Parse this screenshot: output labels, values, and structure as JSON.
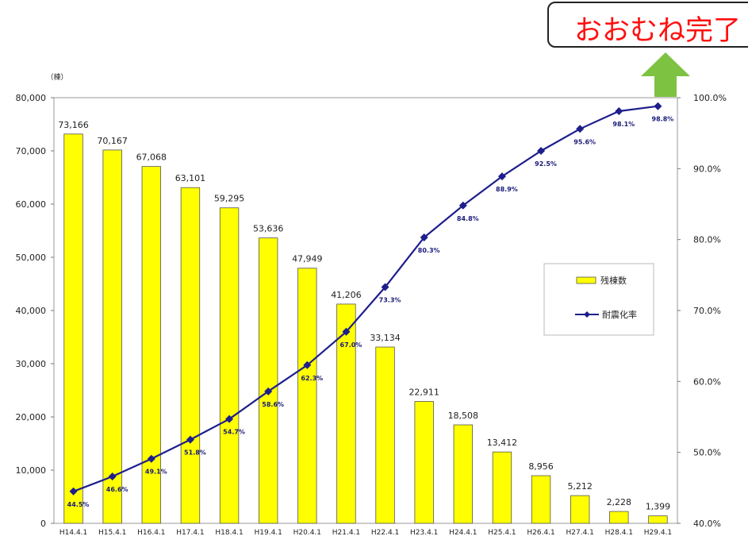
{
  "callout": {
    "text": "おおむね完了"
  },
  "chart_data": {
    "type": "bar",
    "y_unit": "（棟）",
    "categories": [
      "H14.4.1",
      "H15.4.1",
      "H16.4.1",
      "H17.4.1",
      "H18.4.1",
      "H19.4.1",
      "H20.4.1",
      "H21.4.1",
      "H22.4.1",
      "H23.4.1",
      "H24.4.1",
      "H25.4.1",
      "H26.4.1",
      "H27.4.1",
      "H28.4.1",
      "H29.4.1"
    ],
    "series": [
      {
        "name": "残棟数",
        "type": "bar",
        "axis": "left",
        "color": "#ffff00",
        "values": [
          73166,
          70167,
          67068,
          63101,
          59295,
          53636,
          47949,
          41206,
          33134,
          22911,
          18508,
          13412,
          8956,
          5212,
          2228,
          1399
        ],
        "labels": [
          "73,166",
          "70,167",
          "67,068",
          "63,101",
          "59,295",
          "53,636",
          "47,949",
          "41,206",
          "33,134",
          "22,911",
          "18,508",
          "13,412",
          "8,956",
          "5,212",
          "2,228",
          "1,399"
        ]
      },
      {
        "name": "耐震化率",
        "type": "line",
        "axis": "right",
        "color": "#1e1e8c",
        "values": [
          44.5,
          46.6,
          49.1,
          51.8,
          54.7,
          58.6,
          62.3,
          67.0,
          73.3,
          80.3,
          84.8,
          88.9,
          92.5,
          95.6,
          98.1,
          98.8
        ],
        "labels": [
          "44.5%",
          "46.6%",
          "49.1%",
          "51.8%",
          "54.7%",
          "58.6%",
          "62.3%",
          "67.0%",
          "73.3%",
          "80.3%",
          "84.8%",
          "88.9%",
          "92.5%",
          "95.6%",
          "98.1%",
          "98.8%"
        ]
      }
    ],
    "left_axis": {
      "ylim": [
        0,
        80000
      ],
      "ticks": [
        "0",
        "10,000",
        "20,000",
        "30,000",
        "40,000",
        "50,000",
        "60,000",
        "70,000",
        "80,000"
      ]
    },
    "right_axis": {
      "ylim": [
        40,
        100
      ],
      "ticks": [
        "40.0%",
        "50.0%",
        "60.0%",
        "70.0%",
        "80.0%",
        "90.0%",
        "100.0%"
      ]
    },
    "legend_placement": "right",
    "grid": false
  }
}
